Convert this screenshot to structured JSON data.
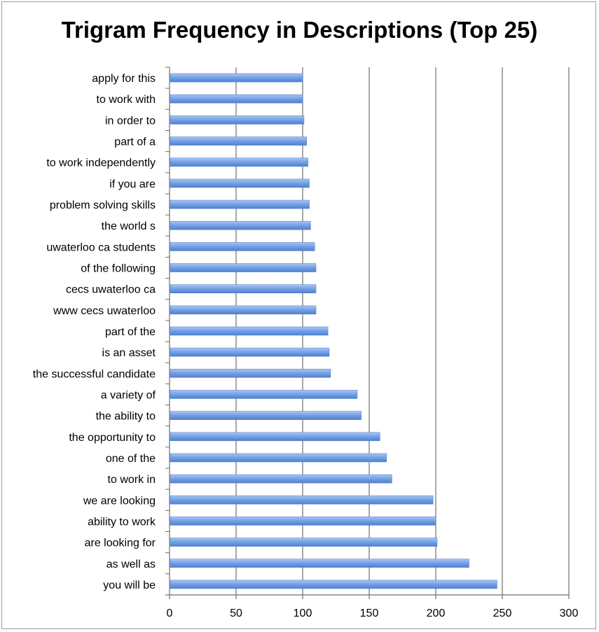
{
  "chart_data": {
    "type": "bar",
    "orientation": "horizontal",
    "title": "Trigram Frequency in Descriptions (Top 25)",
    "xlabel": "",
    "ylabel": "",
    "xlim": [
      0,
      300
    ],
    "xticks": [
      0,
      50,
      100,
      150,
      200,
      250,
      300
    ],
    "grid": "vertical",
    "legend": "none",
    "bar_color": "#6e9be0",
    "categories": [
      "apply for this",
      "to work with",
      "in order to",
      "part of a",
      "to work independently",
      "if you are",
      "problem solving skills",
      "the world s",
      "uwaterloo ca students",
      "of the following",
      "cecs uwaterloo ca",
      "www cecs uwaterloo",
      "part of the",
      "is an asset",
      "the successful candidate",
      "a variety of",
      "the ability to",
      "the opportunity to",
      "one of the",
      "to work in",
      "we are looking",
      "ability to work",
      "are looking for",
      "as well as",
      "you will be"
    ],
    "values": [
      100,
      100,
      101,
      103,
      104,
      105,
      105,
      106,
      109,
      110,
      110,
      110,
      119,
      120,
      121,
      141,
      144,
      158,
      163,
      167,
      198,
      200,
      201,
      225,
      246
    ]
  }
}
